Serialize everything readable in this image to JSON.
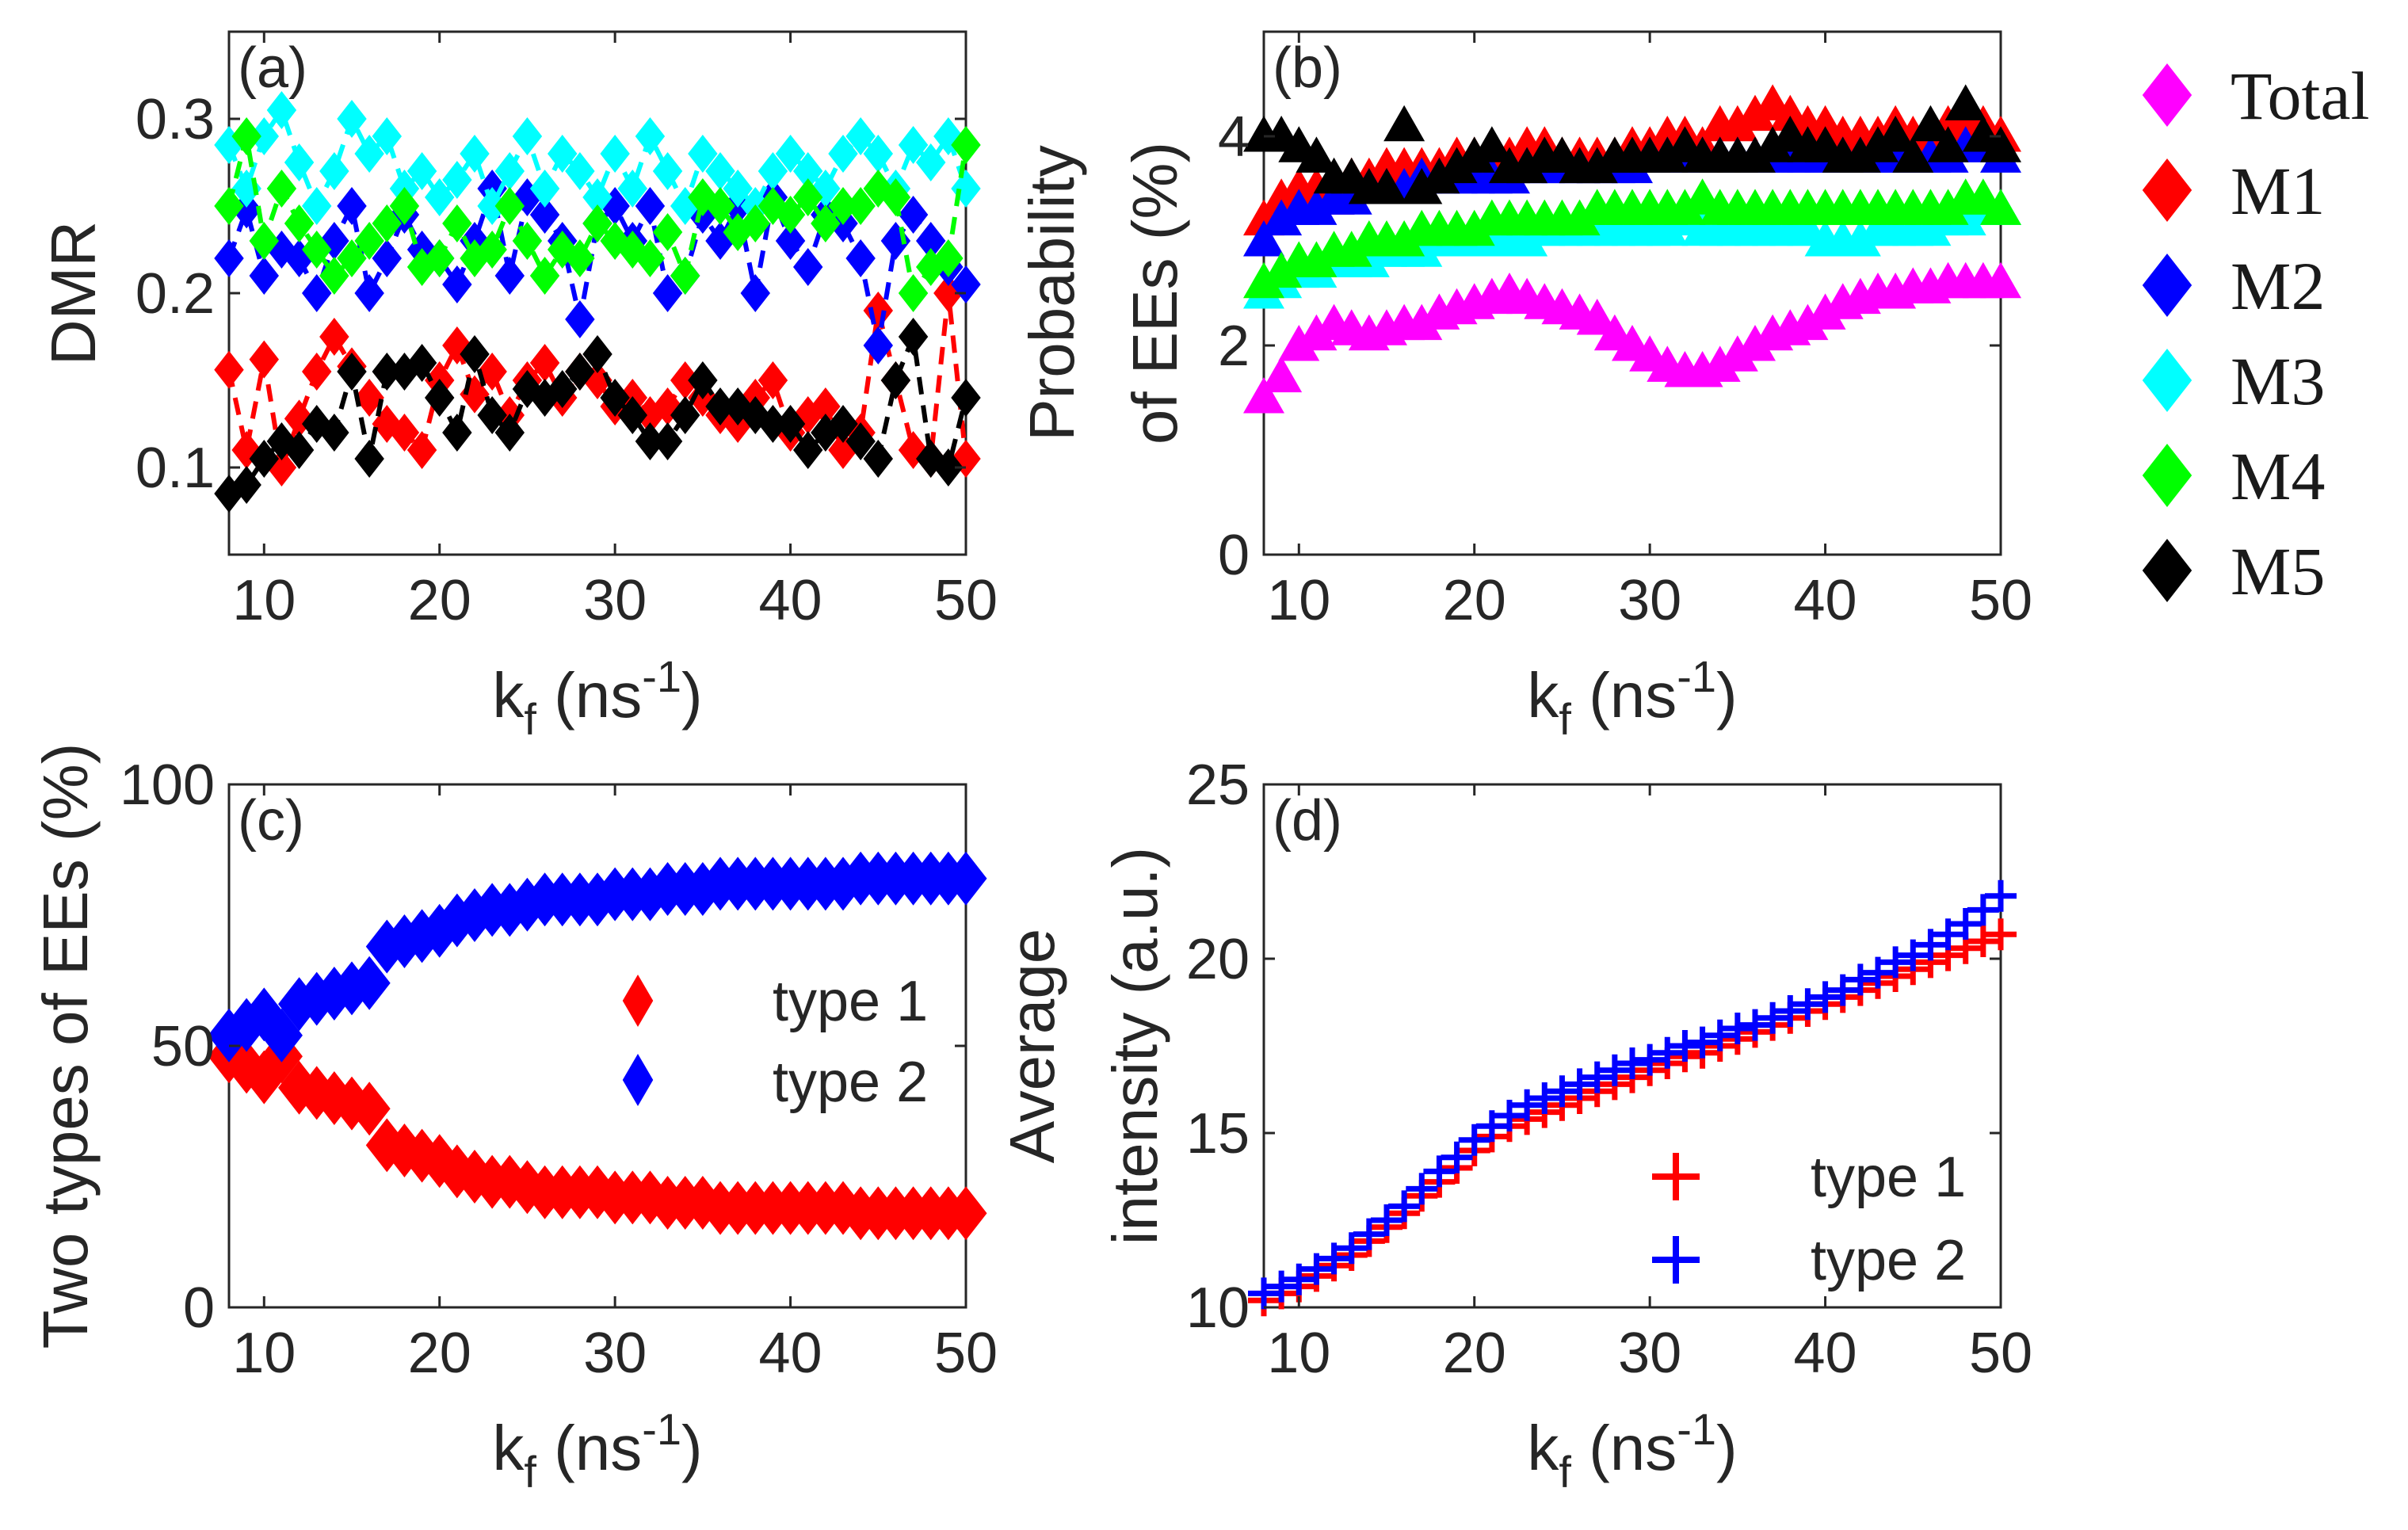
{
  "figure": {
    "colors": {
      "Total": "#ff00ff",
      "M1": "#ff0000",
      "M2": "#0000ff",
      "M3": "#00ffff",
      "M4": "#00ff00",
      "M5": "#000000"
    },
    "legend_main": [
      "Total",
      "M1",
      "M2",
      "M3",
      "M4",
      "M5"
    ]
  },
  "chart_data": [
    {
      "panel": "(a)",
      "type": "line",
      "xlabel": "k_f (ns^-1)",
      "ylabel": "DMR",
      "xlim": [
        8,
        50
      ],
      "ylim": [
        0.05,
        0.35
      ],
      "xticks": [
        "10",
        "20",
        "30",
        "40",
        "50"
      ],
      "yticks": [
        "0.1",
        "0.2",
        "0.3"
      ],
      "x": [
        8,
        9,
        10,
        11,
        12,
        13,
        14,
        15,
        16,
        17,
        18,
        19,
        20,
        21,
        22,
        23,
        24,
        25,
        26,
        27,
        28,
        29,
        30,
        31,
        32,
        33,
        34,
        35,
        36,
        37,
        38,
        39,
        40,
        41,
        42,
        43,
        44,
        45,
        46,
        47,
        48,
        49,
        50
      ],
      "series": [
        {
          "name": "M1",
          "values": [
            0.156,
            0.11,
            0.162,
            0.1,
            0.128,
            0.155,
            0.175,
            0.158,
            0.14,
            0.125,
            0.12,
            0.11,
            0.15,
            0.17,
            0.142,
            0.155,
            0.13,
            0.15,
            0.16,
            0.14,
            0.155,
            0.15,
            0.135,
            0.14,
            0.13,
            0.135,
            0.15,
            0.14,
            0.13,
            0.125,
            0.14,
            0.15,
            0.12,
            0.13,
            0.135,
            0.11,
            0.12,
            0.19,
            0.15,
            0.11,
            0.105,
            0.2,
            0.105
          ]
        },
        {
          "name": "M2",
          "values": [
            0.22,
            0.248,
            0.21,
            0.225,
            0.22,
            0.2,
            0.23,
            0.25,
            0.2,
            0.22,
            0.245,
            0.225,
            0.22,
            0.205,
            0.23,
            0.26,
            0.21,
            0.255,
            0.245,
            0.23,
            0.185,
            0.24,
            0.25,
            0.23,
            0.25,
            0.2,
            0.21,
            0.245,
            0.23,
            0.25,
            0.2,
            0.255,
            0.23,
            0.215,
            0.245,
            0.24,
            0.22,
            0.17,
            0.23,
            0.245,
            0.23,
            0.215,
            0.205
          ]
        },
        {
          "name": "M3",
          "values": [
            0.285,
            0.26,
            0.29,
            0.305,
            0.275,
            0.25,
            0.27,
            0.3,
            0.28,
            0.29,
            0.26,
            0.27,
            0.255,
            0.265,
            0.28,
            0.25,
            0.27,
            0.29,
            0.26,
            0.28,
            0.27,
            0.255,
            0.28,
            0.26,
            0.29,
            0.27,
            0.25,
            0.28,
            0.27,
            0.26,
            0.25,
            0.27,
            0.28,
            0.27,
            0.26,
            0.28,
            0.29,
            0.28,
            0.26,
            0.285,
            0.275,
            0.29,
            0.26
          ]
        },
        {
          "name": "M4",
          "values": [
            0.25,
            0.29,
            0.23,
            0.26,
            0.24,
            0.225,
            0.21,
            0.22,
            0.23,
            0.24,
            0.25,
            0.215,
            0.22,
            0.24,
            0.22,
            0.225,
            0.25,
            0.23,
            0.21,
            0.225,
            0.22,
            0.24,
            0.23,
            0.225,
            0.22,
            0.235,
            0.21,
            0.255,
            0.25,
            0.235,
            0.24,
            0.25,
            0.245,
            0.255,
            0.24,
            0.25,
            0.25,
            0.26,
            0.255,
            0.2,
            0.215,
            0.22,
            0.285
          ]
        },
        {
          "name": "M5",
          "values": [
            0.085,
            0.09,
            0.105,
            0.115,
            0.11,
            0.125,
            0.12,
            0.155,
            0.105,
            0.155,
            0.155,
            0.16,
            0.14,
            0.12,
            0.165,
            0.13,
            0.12,
            0.145,
            0.14,
            0.145,
            0.155,
            0.165,
            0.14,
            0.13,
            0.115,
            0.115,
            0.13,
            0.15,
            0.135,
            0.135,
            0.13,
            0.125,
            0.125,
            0.11,
            0.12,
            0.125,
            0.115,
            0.105,
            0.15,
            0.175,
            0.105,
            0.1,
            0.14
          ]
        }
      ]
    },
    {
      "panel": "(b)",
      "type": "scatter",
      "xlabel": "k_f (ns^-1)",
      "ylabel": "Probability of EEs (%)",
      "xlim": [
        8,
        50
      ],
      "ylim": [
        0,
        5
      ],
      "xticks": [
        "10",
        "20",
        "30",
        "40",
        "50"
      ],
      "yticks": [
        "0",
        "2",
        "4"
      ],
      "x": [
        8,
        9,
        10,
        11,
        12,
        13,
        14,
        15,
        16,
        17,
        18,
        19,
        20,
        21,
        22,
        23,
        24,
        25,
        26,
        27,
        28,
        29,
        30,
        31,
        32,
        33,
        34,
        35,
        36,
        37,
        38,
        39,
        40,
        41,
        42,
        43,
        44,
        45,
        46,
        47,
        48,
        49,
        50
      ],
      "series": [
        {
          "name": "Total",
          "values": [
            1.5,
            1.7,
            2.0,
            2.1,
            2.2,
            2.15,
            2.1,
            2.15,
            2.2,
            2.2,
            2.3,
            2.35,
            2.4,
            2.45,
            2.5,
            2.45,
            2.4,
            2.35,
            2.3,
            2.25,
            2.1,
            2.0,
            1.9,
            1.8,
            1.75,
            1.75,
            1.8,
            1.9,
            2.0,
            2.1,
            2.15,
            2.2,
            2.3,
            2.4,
            2.45,
            2.5,
            2.5,
            2.55,
            2.55,
            2.6,
            2.6,
            2.6,
            2.6
          ]
        },
        {
          "name": "M1",
          "values": [
            3.2,
            3.4,
            3.5,
            3.5,
            3.4,
            3.6,
            3.6,
            3.7,
            3.7,
            3.7,
            3.7,
            3.8,
            3.8,
            3.8,
            3.8,
            3.9,
            3.9,
            3.8,
            3.8,
            3.8,
            3.8,
            3.9,
            3.9,
            4.0,
            4.0,
            3.9,
            4.1,
            4.1,
            4.2,
            4.3,
            4.2,
            4.1,
            4.1,
            4.0,
            4.0,
            4.0,
            4.1,
            4.0,
            4.0,
            4.1,
            4.2,
            4.1,
            4.0
          ]
        },
        {
          "name": "M2",
          "values": [
            3.0,
            3.2,
            3.3,
            3.3,
            3.4,
            3.4,
            3.5,
            3.5,
            3.5,
            3.6,
            3.6,
            3.6,
            3.6,
            3.6,
            3.6,
            3.7,
            3.7,
            3.7,
            3.7,
            3.7,
            3.7,
            3.7,
            3.8,
            3.8,
            3.8,
            3.8,
            3.8,
            3.8,
            3.8,
            3.8,
            3.8,
            3.8,
            3.8,
            3.8,
            3.8,
            3.8,
            3.8,
            3.8,
            3.8,
            3.8,
            3.9,
            3.9,
            3.8
          ]
        },
        {
          "name": "M3",
          "values": [
            2.5,
            2.6,
            2.7,
            2.7,
            2.8,
            2.8,
            2.8,
            2.9,
            2.9,
            2.9,
            3.0,
            3.0,
            3.0,
            3.0,
            3.0,
            3.0,
            3.1,
            3.1,
            3.1,
            3.1,
            3.1,
            3.1,
            3.1,
            3.1,
            3.2,
            3.1,
            3.1,
            3.1,
            3.1,
            3.1,
            3.1,
            3.1,
            3.0,
            3.0,
            3.0,
            3.1,
            3.1,
            3.1,
            3.1,
            3.2,
            3.2,
            3.3,
            3.3
          ]
        },
        {
          "name": "M4",
          "values": [
            2.6,
            2.7,
            2.8,
            2.8,
            2.9,
            2.9,
            3.0,
            3.0,
            3.0,
            3.1,
            3.1,
            3.1,
            3.1,
            3.2,
            3.2,
            3.2,
            3.2,
            3.2,
            3.2,
            3.3,
            3.3,
            3.3,
            3.3,
            3.3,
            3.3,
            3.4,
            3.3,
            3.3,
            3.3,
            3.3,
            3.3,
            3.3,
            3.3,
            3.3,
            3.3,
            3.3,
            3.3,
            3.3,
            3.3,
            3.3,
            3.4,
            3.4,
            3.3
          ]
        },
        {
          "name": "M5",
          "values": [
            4.0,
            4.0,
            3.9,
            3.8,
            3.6,
            3.6,
            3.5,
            3.5,
            4.1,
            3.5,
            3.6,
            3.7,
            3.8,
            3.9,
            3.7,
            3.7,
            3.8,
            3.8,
            3.7,
            3.7,
            3.8,
            3.8,
            3.8,
            3.8,
            3.9,
            3.8,
            3.8,
            3.8,
            3.8,
            3.9,
            4.0,
            3.9,
            3.9,
            3.8,
            3.8,
            3.9,
            4.0,
            3.8,
            4.1,
            3.9,
            4.3,
            4.0,
            3.9
          ]
        }
      ]
    },
    {
      "panel": "(c)",
      "type": "scatter",
      "xlabel": "k_f (ns^-1)",
      "ylabel": "Two types of EEs (%)",
      "xlim": [
        8,
        50
      ],
      "ylim": [
        0,
        100
      ],
      "xticks": [
        "10",
        "20",
        "30",
        "40",
        "50"
      ],
      "yticks": [
        "0",
        "50",
        "100"
      ],
      "legend": [
        "type 1",
        "type 2"
      ],
      "x": [
        8,
        9,
        10,
        11,
        12,
        13,
        14,
        15,
        16,
        17,
        18,
        19,
        20,
        21,
        22,
        23,
        24,
        25,
        26,
        27,
        28,
        29,
        30,
        31,
        32,
        33,
        34,
        35,
        36,
        37,
        38,
        39,
        40,
        41,
        42,
        43,
        44,
        45,
        46,
        47,
        48,
        49,
        50
      ],
      "series": [
        {
          "name": "type 1",
          "values": [
            48,
            46,
            44,
            48,
            42,
            41,
            40,
            39,
            38,
            31,
            30,
            29,
            28,
            26,
            25,
            24,
            24,
            23,
            22,
            22,
            22,
            22,
            21,
            21,
            21,
            20,
            20,
            20,
            19,
            19,
            19,
            19,
            19,
            19,
            19,
            19,
            18,
            18,
            18,
            18,
            18,
            18,
            18
          ]
        },
        {
          "name": "type 2",
          "values": [
            52,
            54,
            56,
            52,
            58,
            59,
            60,
            61,
            62,
            69,
            70,
            71,
            72,
            74,
            75,
            76,
            76,
            77,
            78,
            78,
            78,
            78,
            79,
            79,
            79,
            80,
            80,
            80,
            81,
            81,
            81,
            81,
            81,
            81,
            81,
            81,
            82,
            82,
            82,
            82,
            82,
            82,
            82
          ]
        }
      ]
    },
    {
      "panel": "(d)",
      "type": "scatter",
      "xlabel": "k_f (ns^-1)",
      "ylabel": "Average intensity (a.u.)",
      "xlim": [
        8,
        50
      ],
      "ylim": [
        10,
        25
      ],
      "xticks": [
        "10",
        "20",
        "30",
        "40",
        "50"
      ],
      "yticks": [
        "10",
        "15",
        "20",
        "25"
      ],
      "legend": [
        "type 1",
        "type 2"
      ],
      "x": [
        8,
        9,
        10,
        11,
        12,
        13,
        14,
        15,
        16,
        17,
        18,
        19,
        20,
        21,
        22,
        23,
        24,
        25,
        26,
        27,
        28,
        29,
        30,
        31,
        32,
        33,
        34,
        35,
        36,
        37,
        38,
        39,
        40,
        41,
        42,
        43,
        44,
        45,
        46,
        47,
        48,
        49,
        50
      ],
      "series": [
        {
          "name": "type 1",
          "values": [
            10.2,
            10.4,
            10.6,
            10.9,
            11.2,
            11.5,
            11.9,
            12.3,
            12.7,
            13.2,
            13.6,
            14.0,
            14.5,
            14.9,
            15.2,
            15.4,
            15.6,
            15.8,
            16.0,
            16.2,
            16.4,
            16.6,
            16.8,
            17.0,
            17.2,
            17.3,
            17.5,
            17.7,
            17.9,
            18.1,
            18.3,
            18.5,
            18.7,
            18.9,
            19.1,
            19.3,
            19.5,
            19.7,
            19.9,
            20.1,
            20.3,
            20.5,
            20.7
          ]
        },
        {
          "name": "type 2",
          "values": [
            10.4,
            10.6,
            10.8,
            11.1,
            11.4,
            11.7,
            12.1,
            12.5,
            12.9,
            13.4,
            13.9,
            14.3,
            14.8,
            15.2,
            15.5,
            15.8,
            16.0,
            16.2,
            16.4,
            16.6,
            16.8,
            17.0,
            17.1,
            17.3,
            17.5,
            17.6,
            17.8,
            18.0,
            18.1,
            18.3,
            18.5,
            18.7,
            18.9,
            19.1,
            19.4,
            19.6,
            19.9,
            20.1,
            20.4,
            20.7,
            21.0,
            21.4,
            21.8
          ]
        }
      ]
    }
  ],
  "labels": {
    "a": {
      "panel": "(a)",
      "ylabel": "DMR",
      "xlabel_main": "k",
      "xlabel_sub": "f",
      "xlabel_unit": " (ns",
      "xlabel_sup": "-1",
      "xlabel_close": ")"
    },
    "b": {
      "panel": "(b)",
      "ylabel1": "Probability",
      "ylabel2": "of EEs (%)",
      "xlabel_main": "k",
      "xlabel_sub": "f",
      "xlabel_unit": " (ns",
      "xlabel_sup": "-1",
      "xlabel_close": ")"
    },
    "c": {
      "panel": "(c)",
      "ylabel": "Two types of EEs (%)",
      "xlabel_main": "k",
      "xlabel_sub": "f",
      "xlabel_unit": " (ns",
      "xlabel_sup": "-1",
      "xlabel_close": ")",
      "legend1": "type 1",
      "legend2": "type 2"
    },
    "d": {
      "panel": "(d)",
      "ylabel1": "Average",
      "ylabel2": "intensity (a.u.)",
      "xlabel_main": "k",
      "xlabel_sub": "f",
      "xlabel_unit": " (ns",
      "xlabel_sup": "-1",
      "xlabel_close": ")",
      "legend1": "type 1",
      "legend2": "type 2"
    }
  }
}
